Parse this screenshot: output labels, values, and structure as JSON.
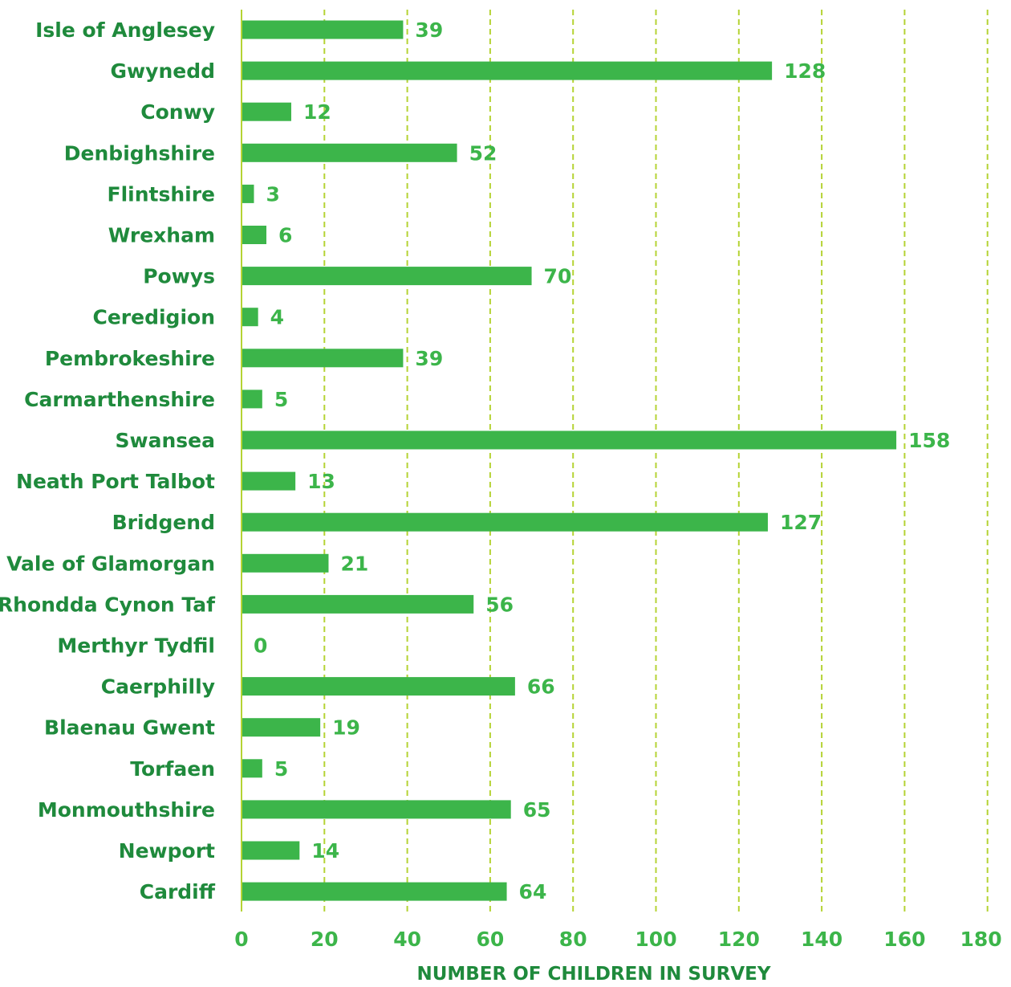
{
  "colors": {
    "bar": "#3cb54a",
    "value_label": "#3cb54a",
    "category_label": "#1f8a3c",
    "tick_label": "#3cb54a",
    "axis_title": "#1f8a3c",
    "grid": "#b5d334",
    "axis_line": "#b5d334"
  },
  "chart_data": {
    "type": "bar",
    "orientation": "horizontal",
    "title": "",
    "xlabel": "NUMBER OF CHILDREN IN SURVEY",
    "ylabel": "",
    "xlim": [
      0,
      180
    ],
    "xticks": [
      0,
      20,
      40,
      60,
      80,
      100,
      120,
      140,
      160,
      180
    ],
    "grid": "vertical dashed",
    "categories": [
      "Isle of Anglesey",
      "Gwynedd",
      "Conwy",
      "Denbighshire",
      "Flintshire",
      "Wrexham",
      "Powys",
      "Ceredigion",
      "Pembrokeshire",
      "Carmarthenshire",
      "Swansea",
      "Neath Port Talbot",
      "Bridgend",
      "Vale of Glamorgan",
      "Rhondda Cynon Taf",
      "Merthyr Tydfil",
      "Caerphilly",
      "Blaenau Gwent",
      "Torfaen",
      "Monmouthshire",
      "Newport",
      "Cardiff"
    ],
    "values": [
      39,
      128,
      12,
      52,
      3,
      6,
      70,
      4,
      39,
      5,
      158,
      13,
      127,
      21,
      56,
      0,
      66,
      19,
      5,
      65,
      14,
      64
    ]
  }
}
